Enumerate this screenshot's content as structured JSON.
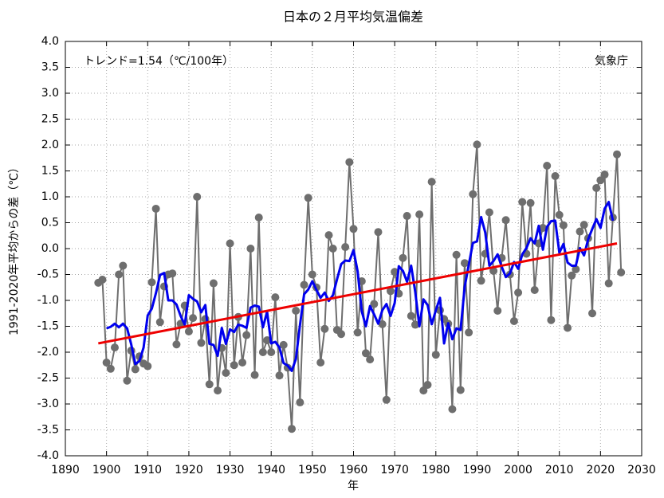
{
  "chart_data": {
    "type": "line",
    "title": "日本の２月平均気温偏差",
    "x_label": "年",
    "y_label": "1991-2020年平均からの差（℃）",
    "annotations": [
      "トレンド=1.54（℃/100年）",
      "気象庁"
    ],
    "xlim": [
      1890,
      2030
    ],
    "xticks": [
      1890,
      1900,
      1910,
      1920,
      1930,
      1940,
      1950,
      1960,
      1970,
      1980,
      1990,
      2000,
      2010,
      2020,
      2030
    ],
    "ylim": [
      -4.0,
      4.0
    ],
    "yticks": [
      {
        "value": -4.0,
        "label": "-4.0"
      },
      {
        "value": -3.5,
        "label": "-3.5"
      },
      {
        "value": -3.0,
        "label": "-3.0"
      },
      {
        "value": -2.5,
        "label": "-2.5"
      },
      {
        "value": -2.0,
        "label": "-2.0"
      },
      {
        "value": -1.5,
        "label": "-1.5"
      },
      {
        "value": -1.0,
        "label": "-1.0"
      },
      {
        "value": -0.5,
        "label": "-0.5"
      },
      {
        "value": 0.0,
        "label": "0.0"
      },
      {
        "value": 0.5,
        "label": "0.5"
      },
      {
        "value": 1.0,
        "label": "1.0"
      },
      {
        "value": 1.5,
        "label": "1.5"
      },
      {
        "value": 2.0,
        "label": "2.0"
      },
      {
        "value": 2.5,
        "label": "2.5"
      },
      {
        "value": 3.0,
        "label": "3.0"
      },
      {
        "value": 3.5,
        "label": "3.5"
      },
      {
        "value": 4.0,
        "label": "4.0"
      }
    ],
    "grid": true,
    "x": [
      1898,
      1899,
      1900,
      1901,
      1902,
      1903,
      1904,
      1905,
      1906,
      1907,
      1908,
      1909,
      1910,
      1911,
      1912,
      1913,
      1914,
      1915,
      1916,
      1917,
      1918,
      1919,
      1920,
      1921,
      1922,
      1923,
      1924,
      1925,
      1926,
      1927,
      1928,
      1929,
      1930,
      1931,
      1932,
      1933,
      1934,
      1935,
      1936,
      1937,
      1938,
      1939,
      1940,
      1941,
      1942,
      1943,
      1944,
      1945,
      1946,
      1947,
      1948,
      1949,
      1950,
      1951,
      1952,
      1953,
      1954,
      1955,
      1956,
      1957,
      1958,
      1959,
      1960,
      1961,
      1962,
      1963,
      1964,
      1965,
      1966,
      1967,
      1968,
      1969,
      1970,
      1971,
      1972,
      1973,
      1974,
      1975,
      1976,
      1977,
      1978,
      1979,
      1980,
      1981,
      1982,
      1983,
      1984,
      1985,
      1986,
      1987,
      1988,
      1989,
      1990,
      1991,
      1992,
      1993,
      1994,
      1995,
      1996,
      1997,
      1998,
      1999,
      2000,
      2001,
      2002,
      2003,
      2004,
      2005,
      2006,
      2007,
      2008,
      2009,
      2010,
      2011,
      2012,
      2013,
      2014,
      2015,
      2016,
      2017,
      2018,
      2019,
      2020,
      2021,
      2022,
      2023,
      2024,
      2025
    ],
    "series": [
      {
        "color": "#6e6e6e",
        "markers": true,
        "width": 2,
        "values": [
          -0.66,
          -0.6,
          -2.2,
          -2.32,
          -1.91,
          -0.5,
          -0.33,
          -2.55,
          -1.97,
          -2.33,
          -2.08,
          -2.22,
          -2.27,
          -0.65,
          0.77,
          -1.42,
          -0.73,
          -0.5,
          -0.48,
          -1.85,
          -1.45,
          -1.1,
          -1.6,
          -1.34,
          1.0,
          -1.82,
          -1.36,
          -2.62,
          -0.67,
          -2.74,
          -1.92,
          -2.4,
          0.1,
          -2.25,
          -1.32,
          -2.2,
          -1.67,
          0.0,
          -2.44,
          0.6,
          -2.0,
          -1.77,
          -2.0,
          -0.94,
          -2.45,
          -1.86,
          -2.3,
          -3.48,
          -1.2,
          -2.97,
          -0.7,
          0.98,
          -0.5,
          -0.75,
          -2.2,
          -1.55,
          0.26,
          0.0,
          -1.57,
          -1.65,
          0.03,
          1.67,
          0.38,
          -1.62,
          -0.63,
          -2.02,
          -2.14,
          -1.07,
          0.32,
          -1.46,
          -2.92,
          -0.82,
          -0.45,
          -0.87,
          -0.18,
          0.63,
          -1.3,
          -1.47,
          0.66,
          -2.74,
          -2.63,
          1.29,
          -2.05,
          -1.19,
          -1.36,
          -1.45,
          -3.1,
          -0.12,
          -2.73,
          -0.28,
          -1.62,
          1.05,
          2.01,
          -0.62,
          -0.1,
          0.7,
          -0.43,
          -1.2,
          -0.18,
          0.55,
          -0.5,
          -1.4,
          -0.85,
          0.9,
          -0.1,
          0.88,
          -0.8,
          0.1,
          0.4,
          1.6,
          -1.38,
          1.4,
          0.65,
          0.45,
          -1.53,
          -0.52,
          -0.4,
          0.33,
          0.46,
          0.2,
          -1.25,
          1.17,
          1.32,
          1.43,
          -0.67,
          0.6,
          1.82,
          -0.46
        ]
      },
      {
        "color": "#0000ee",
        "markers": false,
        "width": 3,
        "values": [
          null,
          null,
          -1.54,
          -1.51,
          -1.45,
          -1.52,
          -1.45,
          -1.54,
          -1.85,
          -2.23,
          -2.17,
          -1.91,
          -1.29,
          -1.16,
          -0.86,
          -0.51,
          -0.47,
          -1.0,
          -1.0,
          -1.08,
          -1.3,
          -1.47,
          -0.9,
          -0.97,
          -1.02,
          -1.23,
          -1.09,
          -1.84,
          -1.86,
          -2.07,
          -1.53,
          -1.84,
          -1.56,
          -1.61,
          -1.47,
          -1.49,
          -1.53,
          -1.14,
          -1.1,
          -1.12,
          -1.52,
          -1.22,
          -1.83,
          -1.8,
          -1.91,
          -2.21,
          -2.26,
          -2.36,
          -2.13,
          -1.47,
          -0.88,
          -0.79,
          -0.63,
          -0.8,
          -0.95,
          -0.85,
          -1.01,
          -0.9,
          -0.59,
          -0.3,
          -0.23,
          -0.24,
          -0.03,
          -0.44,
          -1.21,
          -1.5,
          -1.11,
          -1.27,
          -1.45,
          -1.19,
          -1.07,
          -1.3,
          -1.05,
          -0.34,
          -0.43,
          -0.64,
          -0.33,
          -0.84,
          -1.5,
          -0.98,
          -1.09,
          -1.46,
          -1.19,
          -0.95,
          -1.83,
          -1.44,
          -1.75,
          -1.54,
          -1.57,
          -0.74,
          -0.31,
          0.11,
          0.14,
          0.61,
          0.31,
          -0.33,
          -0.24,
          -0.11,
          -0.35,
          -0.55,
          -0.48,
          -0.26,
          -0.39,
          -0.11,
          0.01,
          0.2,
          0.1,
          0.44,
          -0.02,
          0.42,
          0.53,
          0.54,
          -0.08,
          0.09,
          -0.27,
          -0.33,
          -0.33,
          0.01,
          -0.13,
          0.18,
          0.38,
          0.57,
          0.4,
          0.77,
          0.9,
          0.54,
          null,
          null
        ]
      },
      {
        "color": "#ee0000",
        "markers": false,
        "width": 3,
        "x": [
          1898,
          2024
        ],
        "values": [
          -1.83,
          0.1
        ]
      }
    ]
  }
}
